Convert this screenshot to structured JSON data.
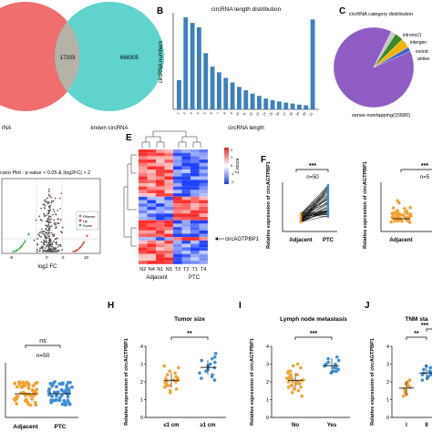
{
  "panels": {
    "A": {
      "letter": "",
      "overlap": "17203",
      "right_count": "668305",
      "left_label": "rNA",
      "right_label": "known circRNA"
    },
    "B": {
      "letter": "B",
      "title": "circRNA length distribution",
      "ylabel": "circRNA numbers",
      "xlabel": "circRNA length"
    },
    "C": {
      "letter": "C",
      "title": "circRNA category distribution",
      "labels": [
        "intronic(1",
        "intergen",
        "exonic",
        "antise",
        "sense-overlapping(15680)"
      ]
    },
    "D": {
      "letter": "",
      "title": "cano Plot : p-value < 0.05 & |log2FC| > 2",
      "xlabel": "log2 FC",
      "legend": [
        "Filtered",
        "Up",
        "Down"
      ],
      "ticks": [
        "-8",
        "0",
        "5",
        "10"
      ]
    },
    "E": {
      "letter": "E",
      "zscore": "Z-score",
      "arrow_label": "circAGTPBP1",
      "cols": [
        "N2",
        "N4",
        "N1",
        "N3",
        "T3",
        "T2",
        "T1",
        "T4"
      ],
      "group_a": "Adjacent",
      "group_b": "PTC",
      "scale_ticks": [
        "2",
        "1",
        "0",
        "-1",
        "-2"
      ]
    },
    "F": {
      "letter": "F",
      "ylabel": "Relative expression of circAGTPBP1",
      "sig": "***",
      "n": "n=50",
      "groups": [
        "Adjacent",
        "PTC"
      ],
      "yticks": [
        "0",
        "1",
        "2",
        "3"
      ],
      "right_sig": "***",
      "right_n": "n=5",
      "right_group": "Adjacent",
      "right_ticks": [
        "0",
        "1",
        "2",
        "3",
        "4"
      ],
      "right_ylabel": "Relative expression of circAGTPBP1"
    },
    "G": {
      "sig": "ns",
      "n": "n=50",
      "groups": [
        "Adjacent",
        "PTC"
      ]
    },
    "H": {
      "letter": "H",
      "title": "Tumor size",
      "sig": "**",
      "groups": [
        "≤1 cm",
        "≥1 cm"
      ],
      "ylabel": "Relative expression of circAGTPBP1",
      "yticks": [
        "0",
        "1",
        "2",
        "3",
        "4"
      ]
    },
    "I": {
      "letter": "I",
      "title": "Lymph node metastasis",
      "sig": "***",
      "groups": [
        "No",
        "Yes"
      ],
      "ylabel": "Relative expression of circAGTPBP1",
      "yticks": [
        "0",
        "1",
        "2",
        "3",
        "4"
      ]
    },
    "J": {
      "letter": "J",
      "title": "TNM sta",
      "sig1": "**",
      "sig2": "***",
      "groups": [
        "I",
        "II"
      ],
      "ylabel": "Relative expression of circAGTPBP1",
      "yticks": [
        "0",
        "1",
        "2",
        "3",
        "4"
      ]
    }
  },
  "colors": {
    "venn_left": "#f06e6e",
    "venn_right": "#5fd3cc",
    "bar": "#3d7fc0",
    "pie_main": "#8e5cc2",
    "orange": "#f3a233",
    "blue": "#3f8ed6",
    "heat_hi": "#e0262a",
    "heat_lo": "#1f3fd8"
  },
  "chart_data": [
    {
      "type": "bar",
      "title": "circRNA length distribution",
      "xlabel": "circRNA length",
      "ylabel": "circRNA numbers",
      "categories": [
        "1",
        "2",
        "3",
        "4",
        "5",
        "6",
        "7",
        "8",
        "9",
        "10",
        "11",
        "12",
        "13",
        "14",
        "15",
        "16",
        "17",
        "18",
        "19",
        "20",
        "21"
      ],
      "values": [
        1300,
        4100,
        3850,
        3650,
        2500,
        1900,
        1650,
        1400,
        1200,
        1000,
        850,
        700,
        600,
        480,
        410,
        350,
        300,
        260,
        210,
        180,
        4000
      ],
      "ylim": [
        0,
        4300
      ],
      "grid": false
    },
    {
      "type": "pie",
      "title": "circRNA category distribution",
      "labels": [
        "sense-overlapping(15680)",
        "intronic(1",
        "intergen",
        "exonic",
        "antise"
      ],
      "values": [
        15680,
        350,
        600,
        700,
        300
      ]
    },
    {
      "type": "scatter",
      "title": "Tumor size",
      "categories": [
        "≤1 cm",
        "≥1 cm"
      ],
      "series": [
        {
          "values": [
            2.0,
            2.2,
            1.8,
            2.5,
            1.5,
            2.3,
            1.9,
            2.1,
            2.8,
            1.6,
            2.0,
            2.4,
            1.7,
            2.6,
            2.2,
            1.4,
            2.0,
            2.9,
            1.8,
            2.1
          ]
        },
        {
          "values": [
            2.6,
            3.1,
            2.2,
            2.9,
            3.4,
            2.5,
            2.8,
            3.0,
            2.3,
            3.6,
            2.7,
            2.4,
            3.2,
            2.1,
            2.9,
            3.3
          ]
        }
      ]
    },
    {
      "type": "scatter",
      "title": "Lymph node metastasis",
      "categories": [
        "No",
        "Yes"
      ],
      "series": [
        {
          "values": [
            2.2,
            2.0,
            1.8,
            2.5,
            1.5,
            2.3,
            1.9,
            2.1,
            2.8,
            1.6,
            2.0,
            2.4,
            1.7,
            2.6,
            2.2,
            1.4,
            2.0,
            2.9,
            1.8,
            2.1,
            2.3,
            1.7,
            2.6,
            1.9,
            2.4,
            1.2,
            3.0,
            2.0,
            1.6,
            2.2
          ]
        },
        {
          "values": [
            2.9,
            3.1,
            2.6,
            2.8,
            3.4,
            2.7,
            3.0,
            2.5,
            3.2,
            2.9,
            2.6,
            3.3,
            2.8,
            3.0
          ]
        }
      ]
    },
    {
      "type": "scatter",
      "title": "TNM sta",
      "categories": [
        "I",
        "II"
      ],
      "series": [
        {
          "values": [
            1.5,
            1.8,
            1.2,
            2.0,
            1.6,
            1.9,
            1.3,
            1.7,
            2.1,
            1.4
          ]
        },
        {
          "values": [
            2.4,
            2.6,
            2.2,
            2.8,
            2.5,
            2.3,
            2.7,
            2.9,
            2.1,
            2.5,
            2.6,
            2.4
          ]
        }
      ]
    }
  ]
}
